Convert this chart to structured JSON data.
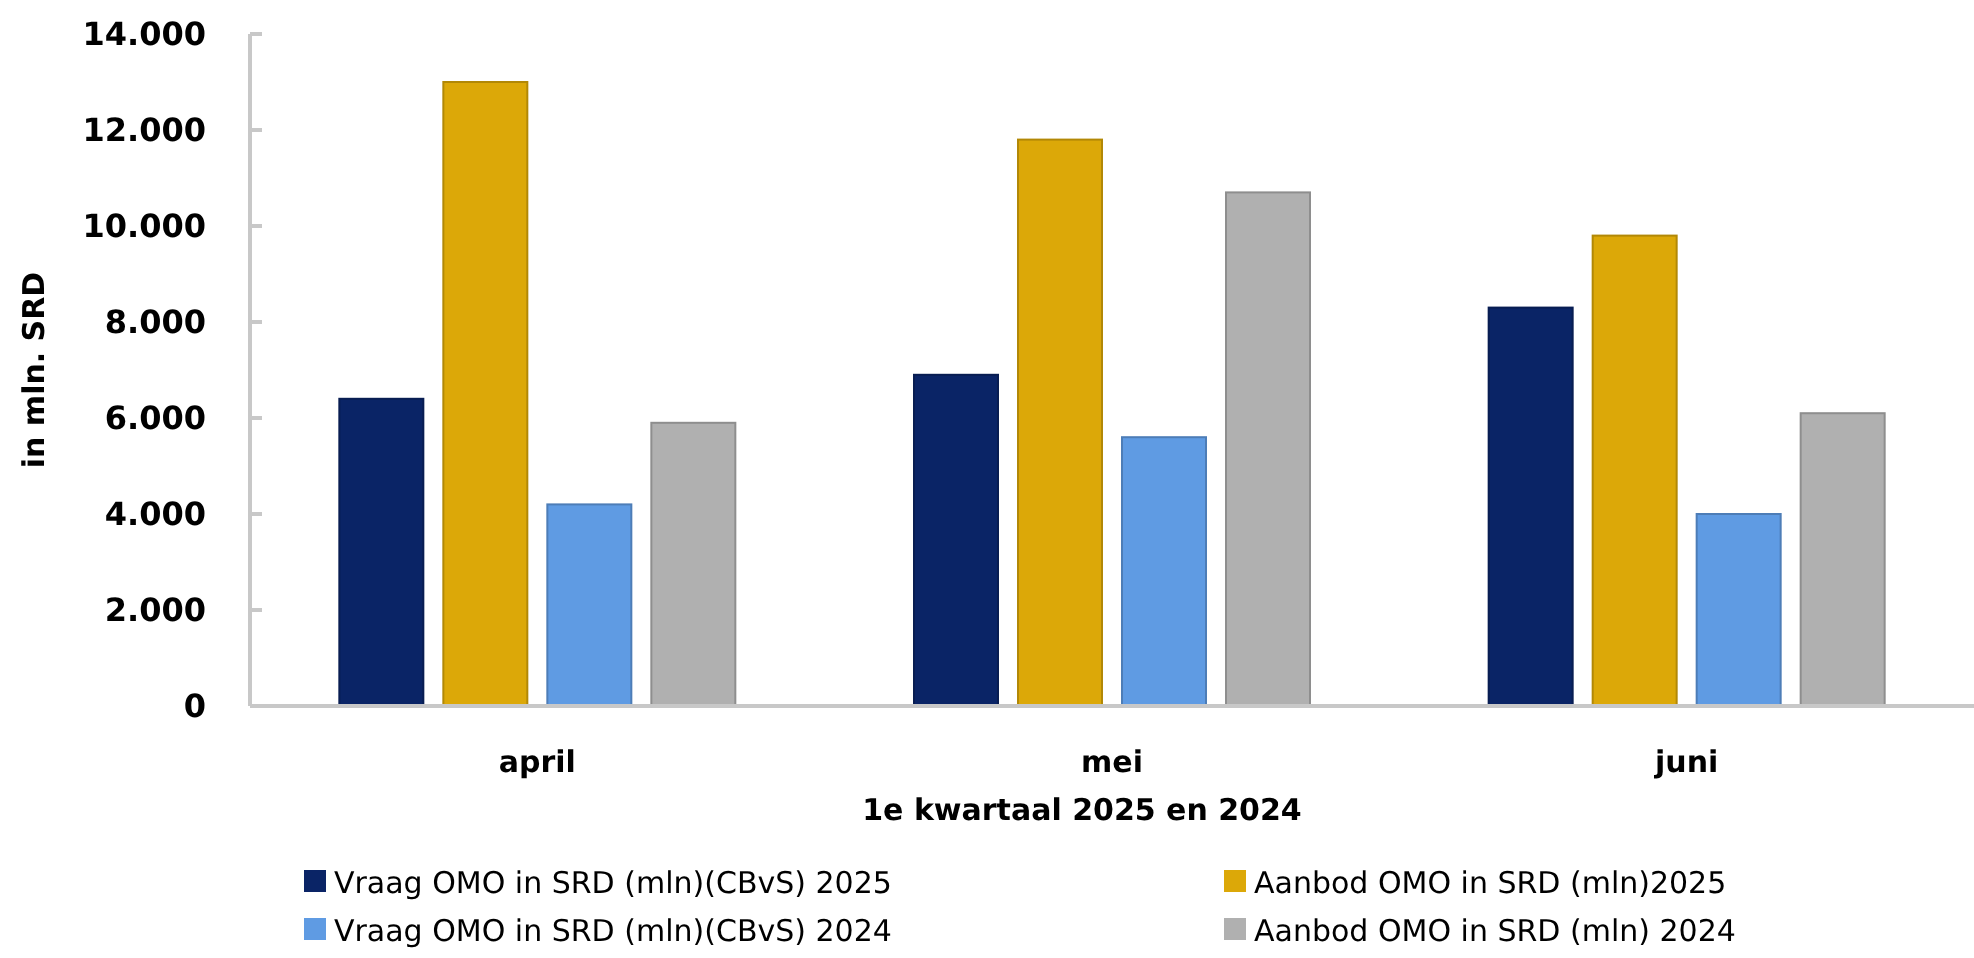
{
  "chart_data": {
    "type": "bar",
    "xlabel": "1e kwartaal 2025 en 2024",
    "ylabel": "in mln. SRD",
    "categories": [
      "april",
      "mei",
      "juni"
    ],
    "series": [
      {
        "name": "Vraag OMO in SRD (mln)(CBvS) 2025",
        "color": "#0a2466",
        "values": [
          6400,
          6900,
          8300
        ]
      },
      {
        "name": "Aanbod OMO  in SRD (mln)2025",
        "color": "#dca808",
        "values": [
          13000,
          11800,
          9800
        ]
      },
      {
        "name": "Vraag OMO in SRD (mln)(CBvS) 2024",
        "color": "#5f9be3",
        "values": [
          4200,
          5600,
          4000
        ]
      },
      {
        "name": "Aanbod OMO  in SRD (mln) 2024",
        "color": "#b0b0b0",
        "values": [
          5900,
          10700,
          6100
        ]
      }
    ],
    "ylim": [
      0,
      14000
    ],
    "yticks": [
      {
        "value": 0,
        "label": "0"
      },
      {
        "value": 2000,
        "label": "2.000"
      },
      {
        "value": 4000,
        "label": "4.000"
      },
      {
        "value": 6000,
        "label": "6.000"
      },
      {
        "value": 8000,
        "label": "8.000"
      },
      {
        "value": 10000,
        "label": "10.000"
      },
      {
        "value": 12000,
        "label": "12.000"
      },
      {
        "value": 14000,
        "label": "14.000"
      }
    ],
    "grid": false,
    "legend": "bottom"
  }
}
